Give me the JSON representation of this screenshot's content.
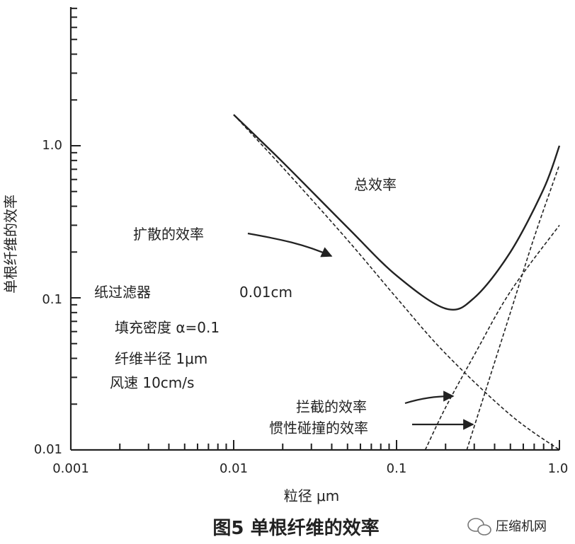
{
  "chart_data": {
    "type": "line",
    "title": "图5 单根纤维的效率",
    "xlabel": "粒径 μm",
    "ylabel": "单根纤维的效率",
    "x_scale": "log",
    "y_scale": "log",
    "xlim": [
      0.001,
      1.0
    ],
    "ylim": [
      0.01,
      10
    ],
    "x_ticks": [
      {
        "value": 0.001,
        "label": "0.001"
      },
      {
        "value": 0.01,
        "label": "0.01"
      },
      {
        "value": 0.1,
        "label": "0.1"
      },
      {
        "value": 1.0,
        "label": "1.0"
      }
    ],
    "y_ticks": [
      {
        "value": 0.01,
        "label": "0.01"
      },
      {
        "value": 0.1,
        "label": "0.1"
      },
      {
        "value": 1.0,
        "label": "1.0"
      }
    ],
    "grid": false,
    "series": [
      {
        "name": "总效率",
        "style": "solid",
        "x": [
          0.01,
          0.02,
          0.05,
          0.1,
          0.2,
          0.3,
          0.5,
          0.8,
          1.0
        ],
        "y": [
          1.6,
          0.78,
          0.29,
          0.14,
          0.085,
          0.1,
          0.2,
          0.52,
          1.0
        ]
      },
      {
        "name": "扩散的效率",
        "style": "dashed",
        "x": [
          0.01,
          0.02,
          0.05,
          0.1,
          0.2,
          0.5,
          1.0
        ],
        "y": [
          1.6,
          0.72,
          0.24,
          0.1,
          0.043,
          0.017,
          0.01
        ]
      },
      {
        "name": "拦截的效率",
        "style": "dashed",
        "x": [
          0.15,
          0.2,
          0.3,
          0.5,
          1.0
        ],
        "y": [
          0.01,
          0.019,
          0.042,
          0.11,
          0.3
        ]
      },
      {
        "name": "惯性碰撞的效率",
        "style": "dashed",
        "x": [
          0.27,
          0.35,
          0.5,
          0.7,
          1.0
        ],
        "y": [
          0.01,
          0.024,
          0.08,
          0.25,
          0.75
        ]
      }
    ],
    "annotations": {
      "total": "总效率",
      "diffusion": "扩散的效率",
      "interception": "拦截的效率",
      "impaction": "惯性碰撞的效率",
      "filter_type": "纸过滤器",
      "thickness": "0.01cm",
      "packing_density": "填充密度 α=0.1",
      "fiber_radius": "纤维半径 1μm",
      "wind_speed": "风速 10cm/s"
    }
  },
  "watermark": "压缩机网"
}
